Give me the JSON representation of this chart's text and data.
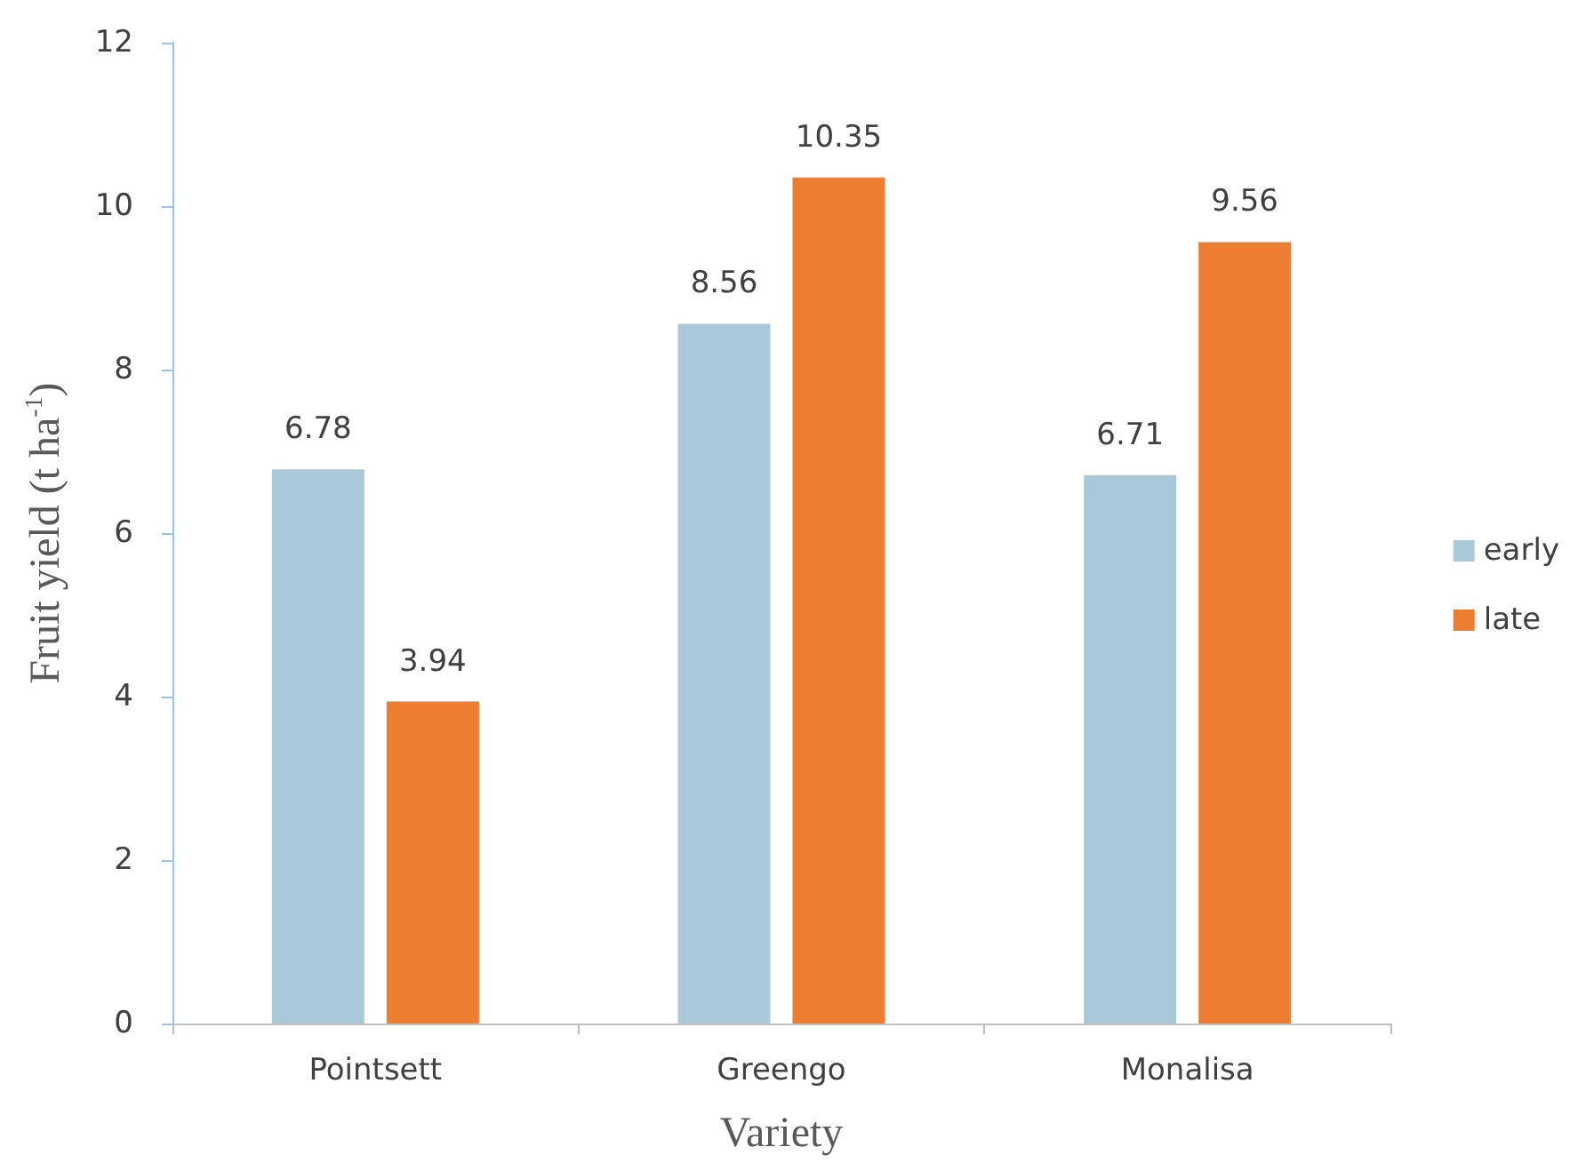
{
  "chart_data": {
    "type": "bar",
    "xlabel": "Variety",
    "ylabel": "Fruit yield (t ha$^{-1}$)",
    "categories": [
      "Pointsett",
      "Greengo",
      "Monalisa"
    ],
    "series": [
      {
        "name": "early",
        "color": "#a9c8d8",
        "values": [
          6.78,
          8.56,
          6.71
        ]
      },
      {
        "name": "late",
        "color": "#ed7d31",
        "values": [
          3.94,
          10.35,
          9.56
        ]
      }
    ],
    "ylim": [
      0,
      12
    ],
    "yticks": [
      0,
      2,
      4,
      6,
      8,
      10,
      12
    ],
    "grid": false,
    "legend": "right",
    "data_labels": true
  }
}
